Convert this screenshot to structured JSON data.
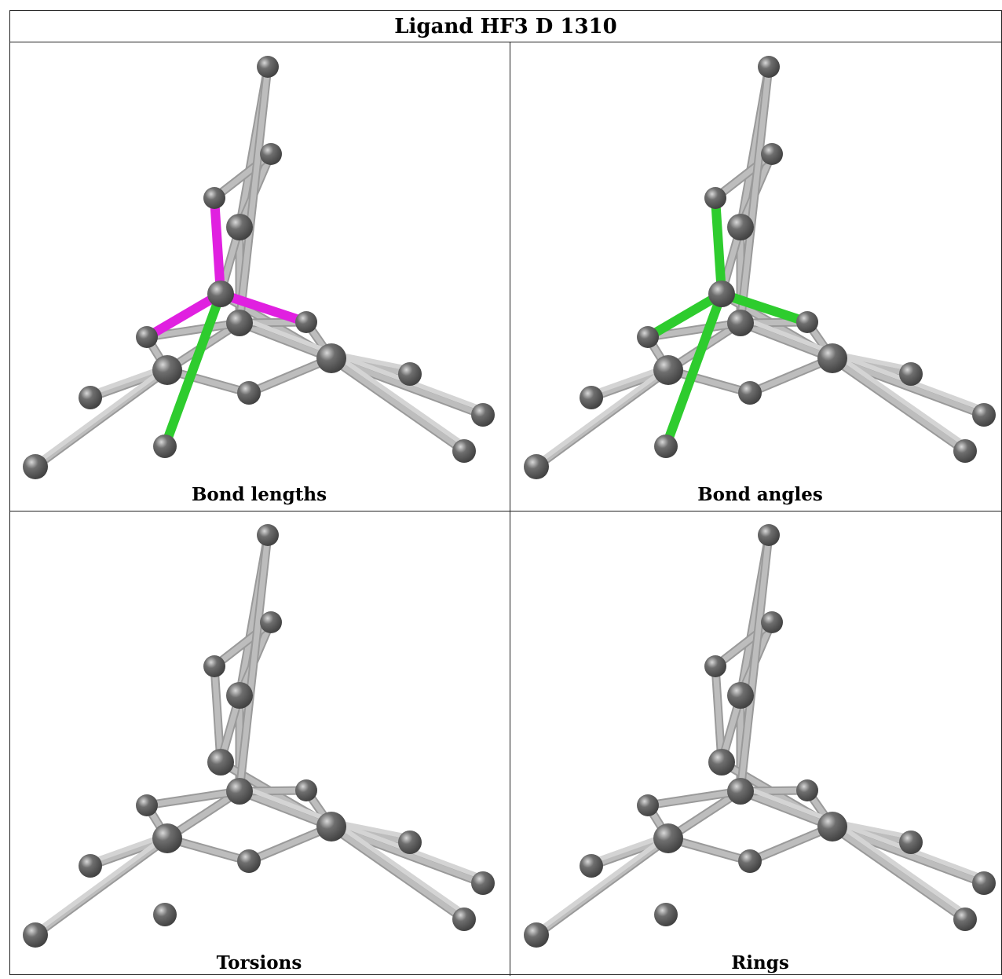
{
  "title": "Ligand HF3 D 1310",
  "panels": [
    {
      "caption": "Bond lengths",
      "highlight": "lengths"
    },
    {
      "caption": "Bond angles",
      "highlight": "angles"
    },
    {
      "caption": "Torsions",
      "highlight": "none"
    },
    {
      "caption": "Rings",
      "highlight": "none"
    }
  ],
  "colors": {
    "atom": "#6e6e6e",
    "bond": "#c4c4c4",
    "magenta": "#e020e0",
    "green": "#2ecc2e"
  }
}
